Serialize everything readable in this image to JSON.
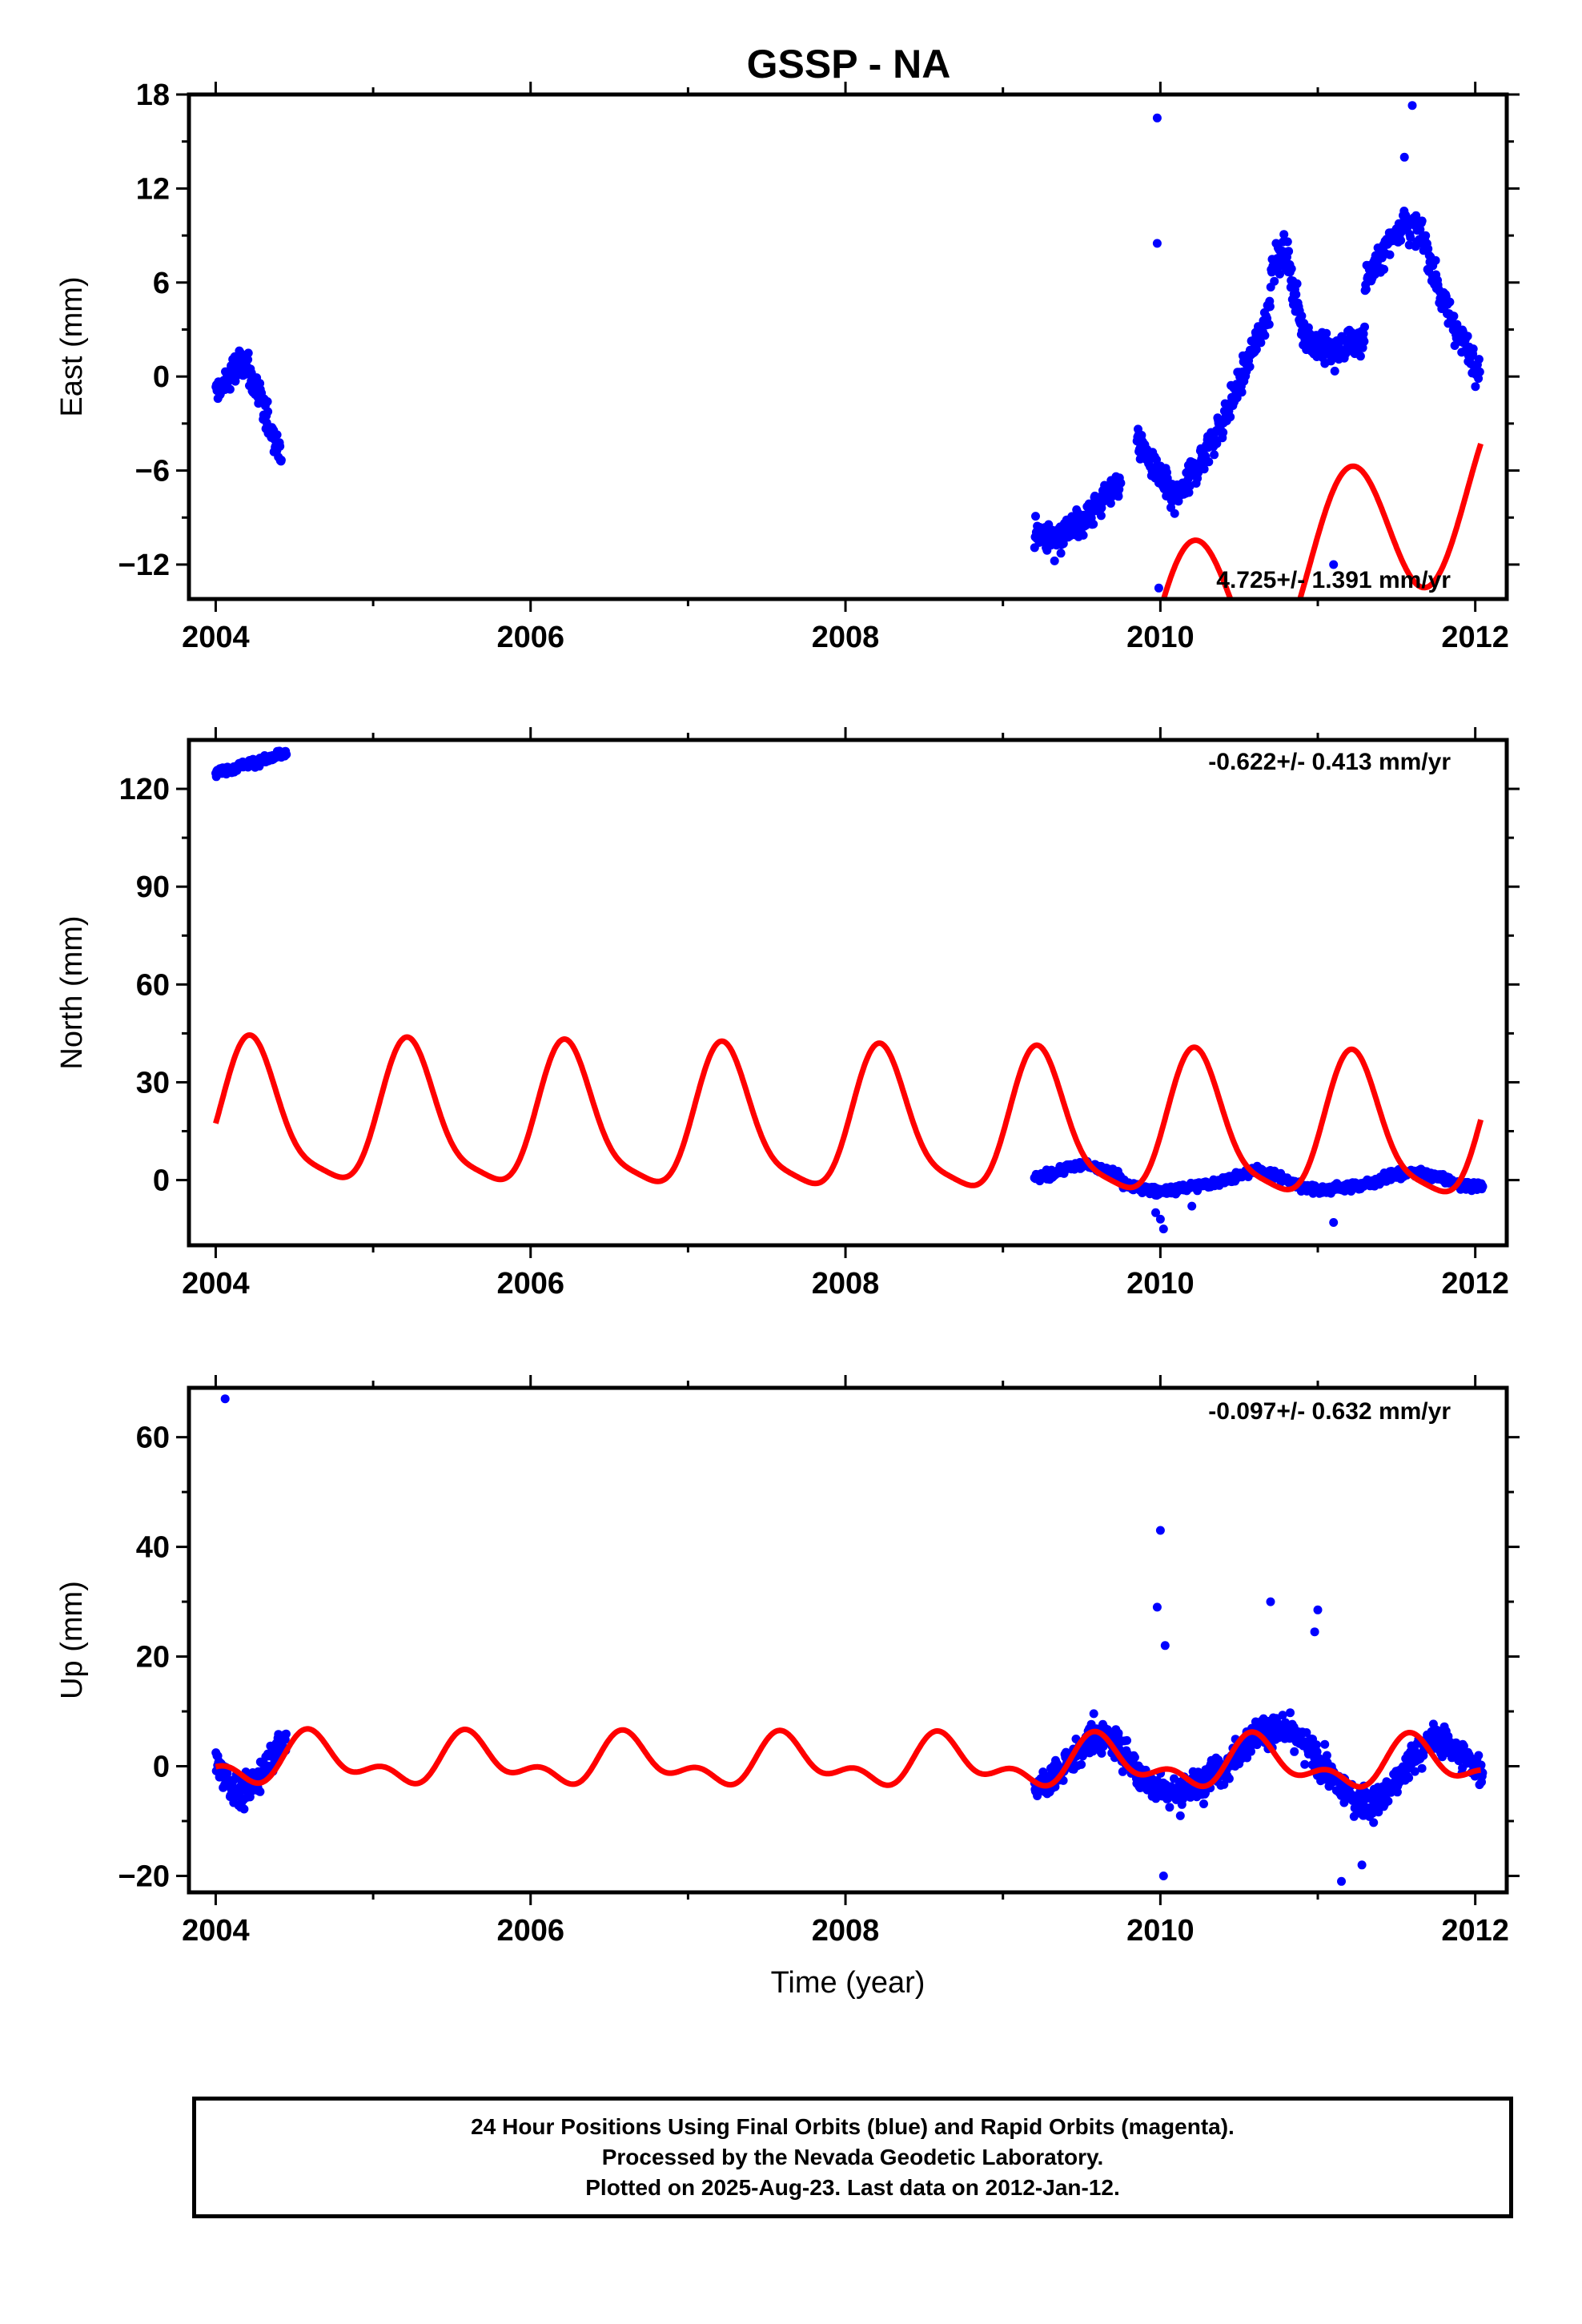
{
  "title": "GSSP - NA",
  "xlabel": "Time (year)",
  "footer": {
    "line1": "24 Hour Positions Using Final Orbits (blue) and Rapid Orbits (magenta).",
    "line2": "Processed by the Nevada Geodetic Laboratory.",
    "line3": "Plotted on 2025-Aug-23. Last data on 2012-Jan-12."
  },
  "colors": {
    "data": "#0000ff",
    "model": "#ff0000",
    "frame": "#000000"
  },
  "chart_data": [
    {
      "type": "scatter",
      "ylabel": "East (mm)",
      "rate_label": "4.725+/- 1.391 mm/yr",
      "xlim": [
        2003.83,
        2012.2
      ],
      "ylim": [
        -14.2,
        18
      ],
      "x_ticks": [
        2004,
        2006,
        2008,
        2010,
        2012
      ],
      "y_ticks": [
        -12,
        -6,
        0,
        6,
        12,
        18
      ],
      "y_tick_labels": [
        "−12",
        "−6",
        "0",
        "6",
        "12",
        "18"
      ],
      "model": {
        "name": "model",
        "offset": -44.8,
        "trend": 4.725,
        "annual_amp": 5.0,
        "annual_peak": 0.2
      },
      "series": [
        {
          "name": "data",
          "segments": [
            {
              "x0": 2004.0,
              "x1": 2004.42,
              "y": [
                -1.0,
                -0.5,
                0.5,
                1.0,
                -0.5,
                -2.0,
                -3.5,
                -5.0
              ]
            },
            {
              "x0": 2009.2,
              "x1": 2009.75,
              "y": [
                -10.0,
                -10.3,
                -9.8,
                -9.0,
                -7.8,
                -6.5
              ]
            },
            {
              "x0": 2009.85,
              "x1": 2010.7,
              "y": [
                -4.0,
                -6.0,
                -8.0,
                -6.0,
                -4.0,
                -1.5,
                1.5,
                4.5
              ]
            },
            {
              "x0": 2010.7,
              "x1": 2011.3,
              "y": [
                7.0,
                8.0,
                3.0,
                2.0,
                1.5,
                2.0,
                2.5
              ]
            },
            {
              "x0": 2011.3,
              "x1": 2012.03,
              "y": [
                6.0,
                8.0,
                10.0,
                9.0,
                5.0,
                2.5,
                0.5
              ]
            }
          ]
        }
      ],
      "outliers": [
        [
          2009.98,
          16.5
        ],
        [
          2009.98,
          8.5
        ],
        [
          2009.99,
          -13.5
        ],
        [
          2011.1,
          -12.0
        ],
        [
          2011.6,
          17.3
        ],
        [
          2011.55,
          14.0
        ]
      ]
    },
    {
      "type": "scatter",
      "ylabel": "North (mm)",
      "rate_label": "-0.622+/- 0.413 mm/yr",
      "xlim": [
        2003.83,
        2012.2
      ],
      "ylim": [
        -20,
        135
      ],
      "x_ticks": [
        2004,
        2006,
        2008,
        2010,
        2012
      ],
      "y_ticks": [
        0,
        30,
        60,
        90,
        120
      ],
      "y_tick_labels": [
        "0",
        "30",
        "60",
        "90",
        "120"
      ],
      "model": {
        "name": "model",
        "offset": 18.8,
        "trend": -0.622,
        "annual_amp": 21.0,
        "annual_peak": 0.23,
        "semi_amp": 5.0,
        "semi_peak": 0.2
      },
      "series": [
        {
          "name": "data",
          "segments": [
            {
              "x0": 2004.0,
              "x1": 2004.45,
              "y": [
                125.0,
                126.0,
                127.5,
                128.5,
                129.5,
                131.0
              ]
            },
            {
              "x0": 2009.2,
              "x1": 2009.75,
              "y": [
                0.5,
                2.0,
                4.0,
                5.0,
                3.0,
                1.0
              ]
            },
            {
              "x0": 2009.75,
              "x1": 2012.05,
              "y": [
                -1.0,
                -3.0,
                -3.5,
                -2.0,
                -1.0,
                1.0,
                3.0,
                1.0,
                -2.0,
                -3.0,
                -2.0,
                -1.0,
                1.5,
                2.5,
                1.0,
                -1.5,
                -2.0
              ]
            }
          ]
        }
      ],
      "outliers": [
        [
          2010.0,
          -12.0
        ],
        [
          2010.02,
          -15.0
        ],
        [
          2009.97,
          -10.0
        ],
        [
          2011.1,
          -13.0
        ],
        [
          2010.2,
          -8.0
        ]
      ]
    },
    {
      "type": "scatter",
      "ylabel": "Up (mm)",
      "rate_label": "-0.097+/- 0.632 mm/yr",
      "xlim": [
        2003.83,
        2012.2
      ],
      "ylim": [
        -23,
        69
      ],
      "x_ticks": [
        2004,
        2006,
        2008,
        2010,
        2012
      ],
      "y_ticks": [
        -20,
        0,
        20,
        40,
        60
      ],
      "y_tick_labels": [
        "−20",
        "0",
        "20",
        "40",
        "60"
      ],
      "model": {
        "name": "model",
        "offset": 1.0,
        "trend": -0.097,
        "annual_amp": 3.6,
        "annual_peak": 0.62,
        "semi_amp": 2.4,
        "semi_peak": 0.07
      },
      "series": [
        {
          "name": "data",
          "segments": [
            {
              "x0": 2004.0,
              "x1": 2004.45,
              "y": [
                1.0,
                -3.0,
                -5.0,
                -2.0,
                2.0,
                5.0
              ]
            },
            {
              "x0": 2009.2,
              "x1": 2009.85,
              "y": [
                -4.0,
                -2.0,
                2.0,
                6.0,
                4.0,
                0.0
              ]
            },
            {
              "x0": 2009.85,
              "x1": 2012.05,
              "y": [
                -2.0,
                -4.0,
                -5.0,
                -3.0,
                0.0,
                4.0,
                7.0,
                6.0,
                3.0,
                -2.0,
                -6.0,
                -7.0,
                -3.0,
                3.0,
                5.0,
                2.0,
                -1.0
              ]
            }
          ]
        }
      ],
      "outliers": [
        [
          2004.06,
          67.0
        ],
        [
          2010.0,
          43.0
        ],
        [
          2009.98,
          29.0
        ],
        [
          2010.03,
          22.0
        ],
        [
          2010.7,
          30.0
        ],
        [
          2011.0,
          28.5
        ],
        [
          2010.98,
          24.5
        ],
        [
          2010.02,
          -20.0
        ],
        [
          2011.15,
          -21.0
        ],
        [
          2011.28,
          -18.0
        ]
      ]
    }
  ]
}
